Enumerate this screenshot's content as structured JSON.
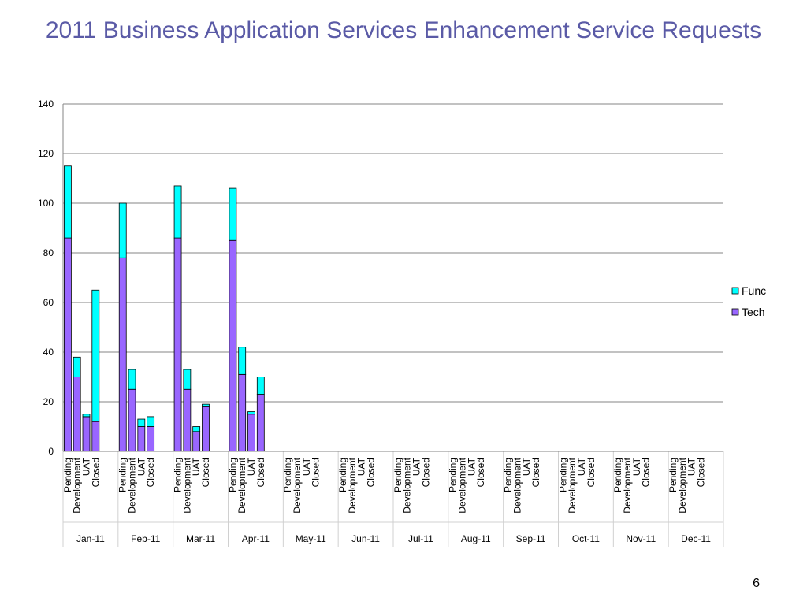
{
  "slide": {
    "title": "2011 Business Application Services Enhancement Service Requests",
    "page_number": "6"
  },
  "chart_data": {
    "type": "bar",
    "stacked": true,
    "title": "",
    "xlabel": "",
    "ylabel": "",
    "ylim": [
      0,
      140
    ],
    "yticks": [
      0,
      20,
      40,
      60,
      80,
      100,
      120,
      140
    ],
    "grid": true,
    "legend_position": "right",
    "groups": [
      "Jan-11",
      "Feb-11",
      "Mar-11",
      "Apr-11",
      "May-11",
      "Jun-11",
      "Jul-11",
      "Aug-11",
      "Sep-11",
      "Oct-11",
      "Nov-11",
      "Dec-11"
    ],
    "sub_categories": [
      "Pending",
      "Development",
      "UAT",
      "Closed"
    ],
    "series": [
      {
        "name": "Tech",
        "color": "#9966ff",
        "values": [
          [
            86,
            30,
            14,
            12
          ],
          [
            78,
            25,
            10,
            10
          ],
          [
            86,
            25,
            8,
            18
          ],
          [
            85,
            31,
            15,
            23
          ],
          [
            null,
            null,
            null,
            null
          ],
          [
            null,
            null,
            null,
            null
          ],
          [
            null,
            null,
            null,
            null
          ],
          [
            null,
            null,
            null,
            null
          ],
          [
            null,
            null,
            null,
            null
          ],
          [
            null,
            null,
            null,
            null
          ],
          [
            null,
            null,
            null,
            null
          ],
          [
            null,
            null,
            null,
            null
          ]
        ]
      },
      {
        "name": "Func",
        "color": "#00ffff",
        "values": [
          [
            29,
            8,
            1,
            53
          ],
          [
            22,
            8,
            3,
            4
          ],
          [
            21,
            8,
            2,
            1
          ],
          [
            21,
            11,
            1,
            7
          ],
          [
            null,
            null,
            null,
            null
          ],
          [
            null,
            null,
            null,
            null
          ],
          [
            null,
            null,
            null,
            null
          ],
          [
            null,
            null,
            null,
            null
          ],
          [
            null,
            null,
            null,
            null
          ],
          [
            null,
            null,
            null,
            null
          ],
          [
            null,
            null,
            null,
            null
          ],
          [
            null,
            null,
            null,
            null
          ]
        ]
      }
    ]
  }
}
